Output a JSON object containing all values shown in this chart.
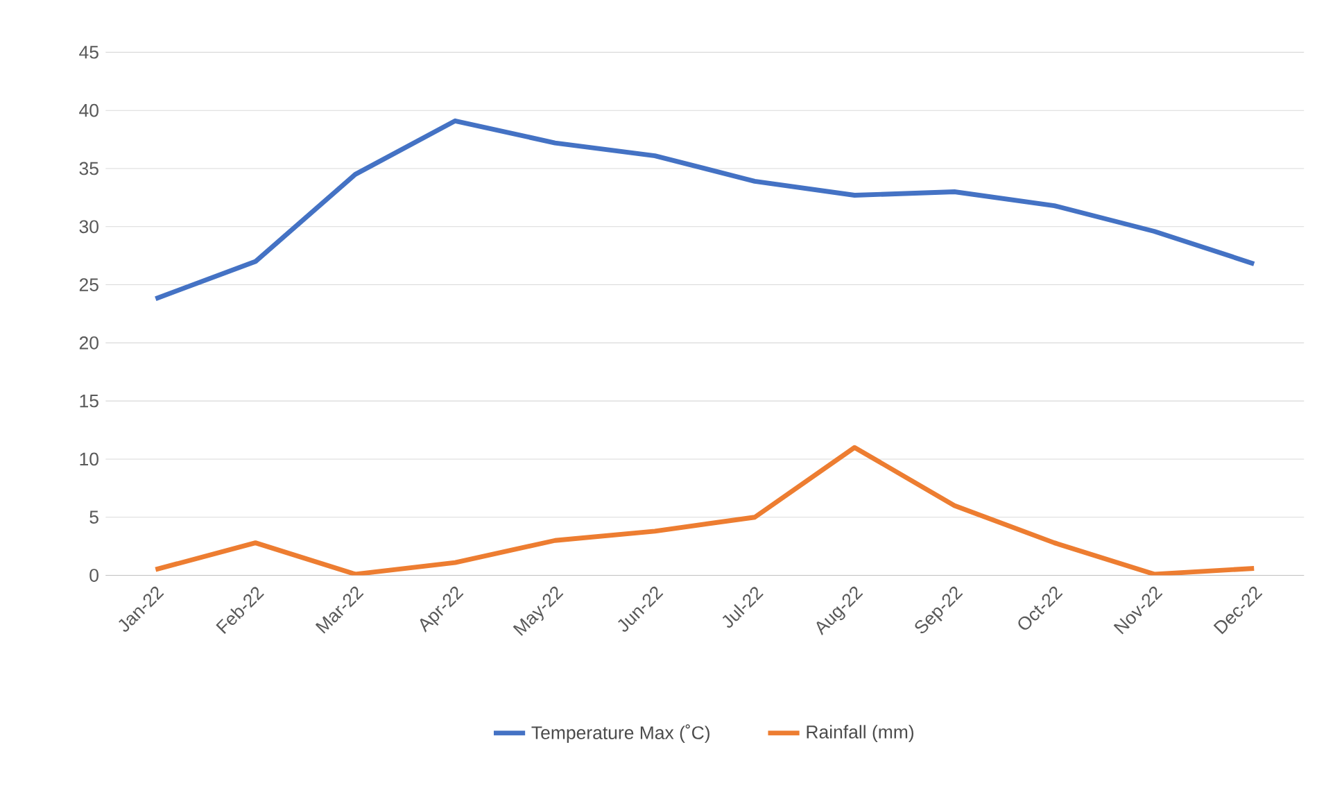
{
  "chart_data": {
    "type": "line",
    "categories": [
      "Jan-22",
      "Feb-22",
      "Mar-22",
      "Apr-22",
      "May-22",
      "Jun-22",
      "Jul-22",
      "Aug-22",
      "Sep-22",
      "Oct-22",
      "Nov-22",
      "Dec-22"
    ],
    "series": [
      {
        "name": "Temperature  Max (˚C)",
        "color": "#4472c4",
        "values": [
          23.8,
          27.0,
          34.5,
          39.1,
          37.2,
          36.1,
          33.9,
          32.7,
          33.0,
          31.8,
          29.6,
          26.8
        ]
      },
      {
        "name": "Rainfall (mm)",
        "color": "#ed7d31",
        "values": [
          0.5,
          2.8,
          0.1,
          1.1,
          3.0,
          3.8,
          5.0,
          11.0,
          6.0,
          2.8,
          0.1,
          0.6
        ]
      }
    ],
    "ylim": [
      0,
      45
    ],
    "yticks": [
      0,
      5,
      10,
      15,
      20,
      25,
      30,
      35,
      40,
      45
    ],
    "grid": "y",
    "legend": "bottom",
    "marker": "none",
    "line_style": "solid"
  }
}
